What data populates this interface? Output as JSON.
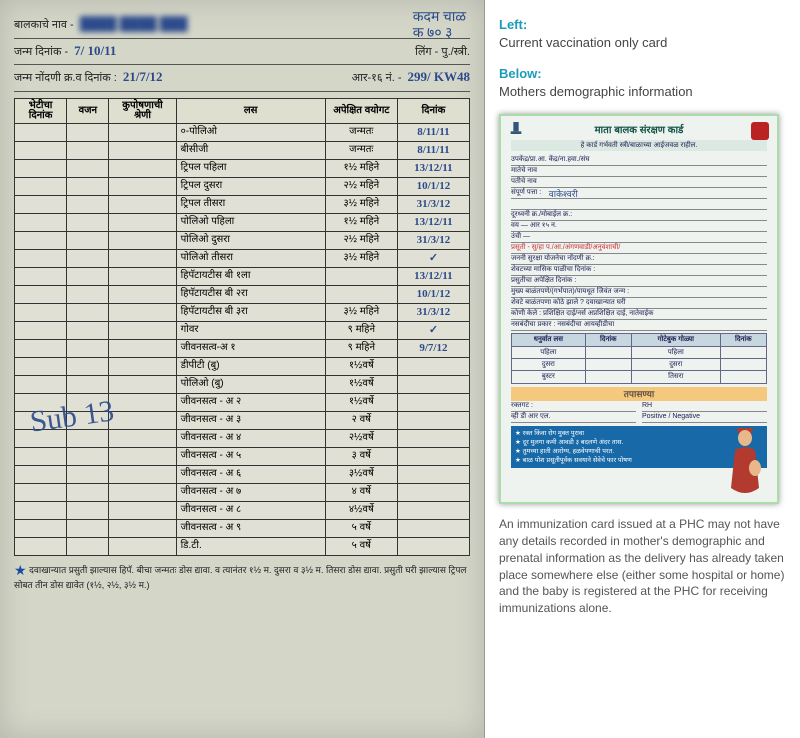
{
  "colors": {
    "paper_bg": "#d4d6c8",
    "ink": "#222222",
    "pen_blue": "#2b4a8b",
    "teal_label": "#1b9cb8",
    "mother_card_bg": "#eef3f0",
    "table_border": "#333333",
    "orange_bar": "#f4c97e",
    "blue_box": "#1769a8"
  },
  "left_card": {
    "topright_line1": "कदम चाळ",
    "topright_line2": "क ७० ३",
    "name_label": "बालकाचे नाव -",
    "name_value_blurred": "████ ████ ███",
    "dob_label": "जन्म दिनांक -",
    "dob_value": "7/ 10/11",
    "sex_label": "लिंग - पु./स्त्री.",
    "reg_label": "जन्म नोंदणी क्र.व दिनांक :",
    "reg_value": "21/7/12",
    "r16_label": "आर-१६ नं. -",
    "r16_value": "299/ KW48",
    "columns": {
      "visit": "भेटीचा दिनांक",
      "weight": "वजन",
      "grade": "कुपोषणाची श्रेणी",
      "vaccine": "लस",
      "expected_age": "अपेक्षित वयोगट",
      "date": "दिनांक"
    },
    "rows": [
      {
        "vaccine": "०-पोलिओ",
        "age": "जन्मतः",
        "date": "8/11/11"
      },
      {
        "vaccine": "बीसीजी",
        "age": "जन्मतः",
        "date": "8/11/11"
      },
      {
        "vaccine": "ट्रिपल पहिला",
        "age": "१½ महिने",
        "date": "13/12/11"
      },
      {
        "vaccine": "ट्रिपल दुसरा",
        "age": "२½ महिने",
        "date": "10/1/12"
      },
      {
        "vaccine": "ट्रिपल तीसरा",
        "age": "३½ महिने",
        "date": "31/3/12"
      },
      {
        "vaccine": "पोलिओ पहिला",
        "age": "१½ महिने",
        "date": "13/12/11"
      },
      {
        "vaccine": "पोलिओ दुसरा",
        "age": "२½ महिने",
        "date": "31/3/12"
      },
      {
        "vaccine": "पोलिओ तीसरा",
        "age": "३½ महिने",
        "date": "✓"
      },
      {
        "vaccine": "हिपॅटायटीस बी १ला",
        "age": "",
        "date": "13/12/11"
      },
      {
        "vaccine": "हिपॅटायटीस बी २रा",
        "age": "",
        "date": "10/1/12"
      },
      {
        "vaccine": "हिपॅटायटीस बी ३रा",
        "age": "३½ महिने",
        "date": "31/3/12"
      },
      {
        "vaccine": "गोवर",
        "age": "९ महिने",
        "date": "✓"
      },
      {
        "vaccine": "जीवनसत्व-अ १",
        "age": "९ महिने",
        "date": "9/7/12"
      },
      {
        "vaccine": "डीपीटी (बु)",
        "age": "१½वर्षे",
        "date": ""
      },
      {
        "vaccine": "पोलिओ (बु)",
        "age": "१½वर्षे",
        "date": ""
      },
      {
        "vaccine": "जीवनसत्व - अ २",
        "age": "१½वर्षे",
        "date": ""
      },
      {
        "vaccine": "जीवनसत्व - अ ३",
        "age": "२ वर्षे",
        "date": ""
      },
      {
        "vaccine": "जीवनसत्व - अ ४",
        "age": "२½वर्षे",
        "date": ""
      },
      {
        "vaccine": "जीवनसत्व - अ ५",
        "age": "३ वर्षे",
        "date": ""
      },
      {
        "vaccine": "जीवनसत्व - अ ६",
        "age": "३½वर्षे",
        "date": ""
      },
      {
        "vaccine": "जीवनसत्व - अ ७",
        "age": "४ वर्षे",
        "date": ""
      },
      {
        "vaccine": "जीवनसत्व - अ ८",
        "age": "४½वर्षे",
        "date": ""
      },
      {
        "vaccine": "जीवनसत्व - अ ९",
        "age": "५ वर्षे",
        "date": ""
      },
      {
        "vaccine": "डि.टी.",
        "age": "५ वर्षे",
        "date": ""
      }
    ],
    "overlay_signature": "Sub 13",
    "footnote": "दवाखान्यात प्रसुती झाल्यास हिपॅ. बीचा जन्मतः डोस द्यावा. व त्यानंतर १½ म. दुसरा व ३½ म. तिसरा डोस द्यावा. प्रसुती घरी झाल्यास ट्रिपल सोबत तीन डोस द्यावेत (१½, २½, ३½ म.)"
  },
  "right": {
    "cap_left_label": "Left:",
    "cap_left_text": "Current vaccination only card",
    "cap_below_label": "Below:",
    "cap_below_text": "Mothers demographic information",
    "bottom_text": "An immunization card issued at a PHC may not have any details recorded in mother's demographic and prenatal information as the delivery has already taken place somewhere else (either some hospital or home) and the baby is registered at the PHC for receiving immunizations alone."
  },
  "mother_card": {
    "title": "माता बालक संरक्षण कार्ड",
    "subtitle": "हे कार्ड गर्भवती स्त्री/बाळाच्या आईजवळ राहील.",
    "lines": [
      "उपकेंद्र/प्रा.आ. केंद्र/ना.हवा./संघ",
      "मातेचे नाव",
      "पतीचे नाव",
      "संपूर्ण पत्ता :",
      "",
      "दूरध्वनी क्र./मोबाईल क्र.:",
      "वय —                       आर १५ न.",
      "उंची —",
      "प्रसूती - सु/हा प./आ./अंगणवाडी/अनुवंशाची/",
      "जननी सुरक्षा योजनेचा नोंदणी क्र.:",
      "शेवटच्या मासिक पाळीचा दिनांक :",
      "प्रसुतीचा अपेक्षित दिनांक :",
      "मुख्य बाळंतपणे/(गर्भपात)/पायधूत जिवंत जन्म :",
      "शेवटे बाळंतपणा कोठे झाले ? दवाखान्यात           घरी",
      "कोणी केले : प्रशिक्षित दाई/नर्स          अप्रशिक्षित दाई, नातेवाईक",
      "नसबंदीचा प्रकार :      नसबंदीचा               आयव्हीडीचा"
    ],
    "hand_address": "वाकेश्वरी",
    "tt_header": "धनुर्वात लस / गोटेबुक गोळ्या",
    "tt_cols": [
      "धनुर्वात लस",
      "दिनांक",
      "गोटेबुक गोळ्या",
      "दिनांक"
    ],
    "tt_rows": [
      [
        "पहिला",
        "",
        "पहिला",
        ""
      ],
      [
        "दुसरा",
        "",
        "दुसरा",
        ""
      ],
      [
        "बुस्टर",
        "",
        "तिसरा",
        ""
      ]
    ],
    "exam_title": "तपासण्या",
    "exam_row1": [
      "रक्तगट :",
      "RH"
    ],
    "exam_row2": [
      "व्ही डी आर एल.",
      "Positive / Negative"
    ],
    "blue_bullets": [
      "रक्त किंवा रोग मुक्त पुरावा",
      "दूर मुलगा कमी आवडी ३ बदलणे अंदर तास.",
      "तुमच्या हाती आरोग्य, हळवेपणाची परत.",
      "बाळ पोश प्रसूतीपूर्वक सवयाने सेवेचे फार पोषण"
    ]
  }
}
